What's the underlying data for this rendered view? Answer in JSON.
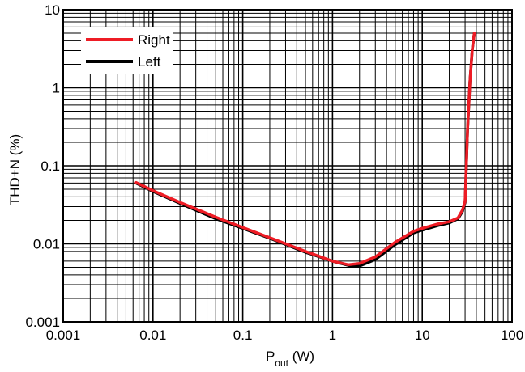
{
  "chart_data": {
    "type": "line",
    "x_scale": "log",
    "y_scale": "log",
    "xlim": [
      0.001,
      100
    ],
    "ylim": [
      0.001,
      10
    ],
    "x_ticks": [
      {
        "value": 0.001,
        "label": "0.001"
      },
      {
        "value": 0.01,
        "label": "0.01"
      },
      {
        "value": 0.1,
        "label": "0.1"
      },
      {
        "value": 1,
        "label": "1"
      },
      {
        "value": 10,
        "label": "10"
      },
      {
        "value": 100,
        "label": "100"
      }
    ],
    "y_ticks": [
      {
        "value": 0.001,
        "label": "0.001"
      },
      {
        "value": 0.01,
        "label": "0.01"
      },
      {
        "value": 0.1,
        "label": "0.1"
      },
      {
        "value": 1,
        "label": "1"
      },
      {
        "value": 10,
        "label": "10"
      }
    ],
    "xlabel": {
      "main": "P",
      "sub": "out",
      "suffix": " (W)"
    },
    "ylabel": "THD+N (%)",
    "grid": true,
    "legend_position": "top-left",
    "series": [
      {
        "name": "Left",
        "color": "#000000",
        "points": [
          [
            0.0065,
            0.06
          ],
          [
            0.01,
            0.047
          ],
          [
            0.02,
            0.033
          ],
          [
            0.05,
            0.021
          ],
          [
            0.1,
            0.0158
          ],
          [
            0.2,
            0.0118
          ],
          [
            0.5,
            0.0078
          ],
          [
            1,
            0.006
          ],
          [
            1.5,
            0.0053
          ],
          [
            2,
            0.0052
          ],
          [
            3,
            0.0063
          ],
          [
            5,
            0.0098
          ],
          [
            8,
            0.0138
          ],
          [
            10,
            0.015
          ],
          [
            15,
            0.0172
          ],
          [
            20,
            0.0185
          ],
          [
            25,
            0.021
          ],
          [
            28,
            0.026
          ],
          [
            30,
            0.034
          ],
          [
            32,
            0.3
          ],
          [
            34,
            1.2
          ],
          [
            36,
            3
          ],
          [
            38,
            5
          ]
        ]
      },
      {
        "name": "Right",
        "color": "#ee1c25",
        "points": [
          [
            0.0065,
            0.061
          ],
          [
            0.01,
            0.048
          ],
          [
            0.02,
            0.034
          ],
          [
            0.05,
            0.022
          ],
          [
            0.1,
            0.0162
          ],
          [
            0.2,
            0.012
          ],
          [
            0.5,
            0.008
          ],
          [
            1,
            0.006
          ],
          [
            1.5,
            0.0054
          ],
          [
            2,
            0.0056
          ],
          [
            3,
            0.0068
          ],
          [
            5,
            0.0105
          ],
          [
            8,
            0.0145
          ],
          [
            10,
            0.0158
          ],
          [
            15,
            0.018
          ],
          [
            20,
            0.0192
          ],
          [
            25,
            0.0215
          ],
          [
            28,
            0.027
          ],
          [
            30,
            0.035
          ],
          [
            32,
            0.3
          ],
          [
            34,
            1.2
          ],
          [
            36,
            3
          ],
          [
            38,
            5
          ]
        ]
      }
    ],
    "legend_order": [
      "Right",
      "Left"
    ]
  }
}
